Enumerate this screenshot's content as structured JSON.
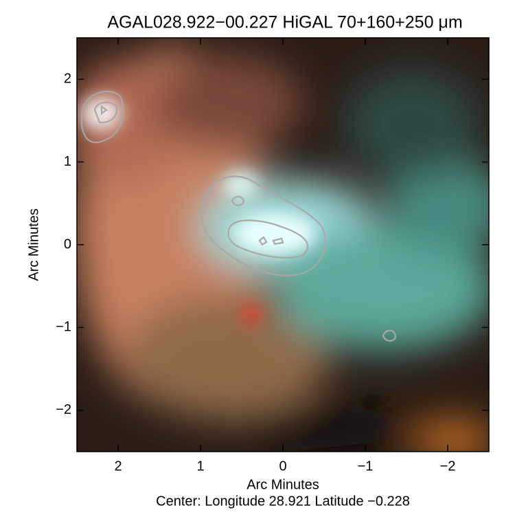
{
  "chart_data": {
    "type": "image",
    "title": "AGAL028.922−00.227 HiGAL 70+160+250 μm",
    "xlabel": "Arc Minutes",
    "ylabel": "Arc Minutes",
    "caption": "Center:  Longitude 28.921 Latitude −0.228",
    "xlim": [
      2.5,
      -2.5
    ],
    "ylim": [
      -2.5,
      2.5
    ],
    "xticks": [
      2,
      1,
      0,
      {
        "value": -1,
        "label": "−1"
      },
      {
        "value": -2,
        "label": "−2"
      }
    ],
    "yticks": [
      {
        "value": -2,
        "label": "−2"
      },
      {
        "value": -1,
        "label": "−1"
      },
      0,
      1,
      2
    ]
  }
}
